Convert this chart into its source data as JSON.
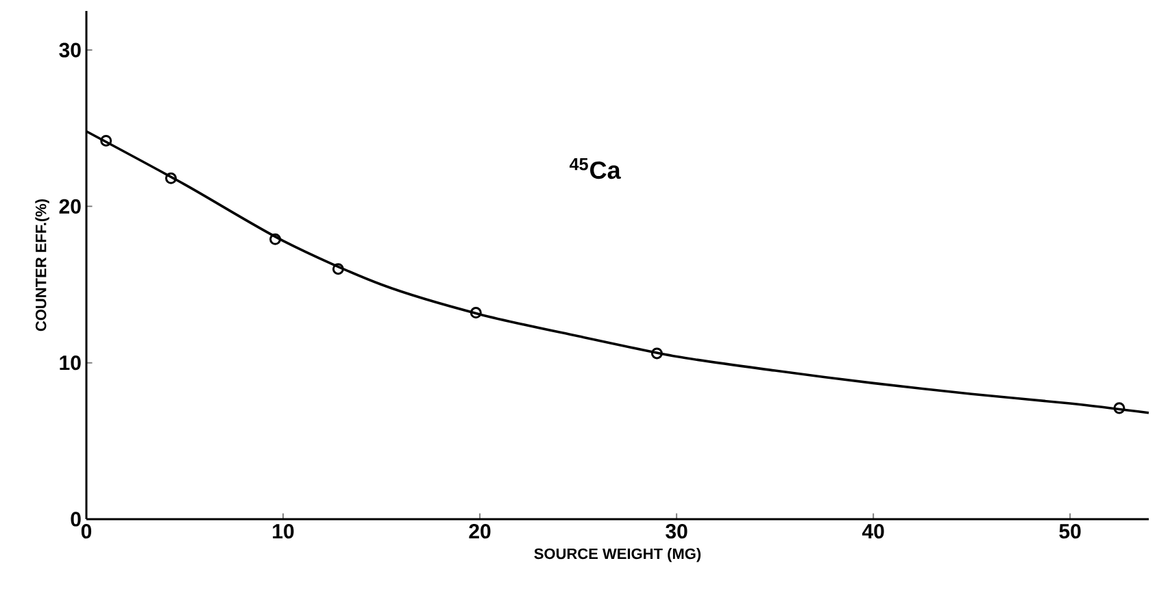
{
  "chart_data": {
    "type": "scatter",
    "xlabel": "SOURCE WEIGHT      (MG)",
    "ylabel": "COUNTER EFF.(%)",
    "annotations": [
      "$^{45}$Ca"
    ],
    "xlim": [
      0,
      54
    ],
    "ylim": [
      0,
      32.5
    ],
    "xticks": [
      0,
      10,
      20,
      30,
      40,
      50
    ],
    "yticks": [
      0,
      10,
      20,
      30
    ],
    "grid": false,
    "series": [
      {
        "color": "#000000",
        "marker": "circle",
        "x": [
          1.0,
          4.3,
          9.6,
          12.8,
          19.8,
          29,
          52.5
        ],
        "values": [
          24.2,
          21.8,
          17.9,
          16.0,
          13.2,
          10.6,
          7.1
        ]
      },
      {
        "type": "line",
        "color": "#000000",
        "marker": "none",
        "line_style": "solid",
        "x": [
          0,
          5,
          10,
          15,
          20,
          25,
          30,
          35,
          40,
          45,
          50,
          54
        ],
        "values": [
          24.8,
          21.4,
          17.8,
          15.0,
          13.1,
          11.7,
          10.4,
          9.5,
          8.7,
          8.0,
          7.4,
          6.8
        ]
      }
    ]
  }
}
